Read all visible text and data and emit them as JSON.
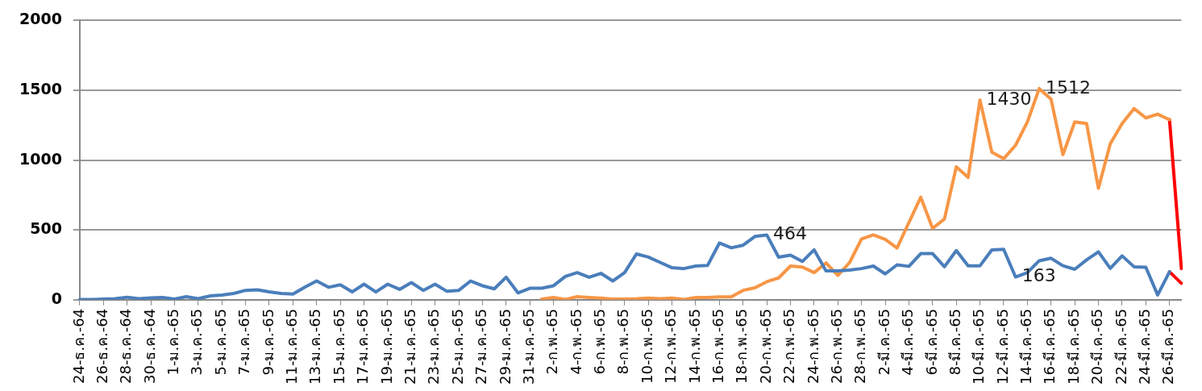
{
  "chart_data": {
    "type": "line",
    "categories": [
      "24-ธ.ค.-64",
      null,
      "26-ธ.ค.-64",
      null,
      "28-ธ.ค.-64",
      null,
      "30-ธ.ค.-64",
      null,
      "1-ม.ค.-65",
      null,
      "3-ม.ค.-65",
      null,
      "5-ม.ค.-65",
      null,
      "7-ม.ค.-65",
      null,
      "9-ม.ค.-65",
      null,
      "11-ม.ค.-65",
      null,
      "13-ม.ค.-65",
      null,
      "15-ม.ค.-65",
      null,
      "17-ม.ค.-65",
      null,
      "19-ม.ค.-65",
      null,
      "21-ม.ค.-65",
      null,
      "23-ม.ค.-65",
      null,
      "25-ม.ค.-65",
      null,
      "27-ม.ค.-65",
      null,
      "29-ม.ค.-65",
      null,
      "31-ม.ค.-65",
      null,
      "2-ก.พ.-65",
      null,
      "4-ก.พ.-65",
      null,
      "6-ก.พ.-65",
      null,
      "8-ก.พ.-65",
      null,
      "10-ก.พ.-65",
      null,
      "12-ก.พ.-65",
      null,
      "14-ก.พ.-65",
      null,
      "16-ก.พ.-65",
      null,
      "18-ก.พ.-65",
      null,
      "20-ก.พ.-65",
      null,
      "22-ก.พ.-65",
      null,
      "24-ก.พ.-65",
      null,
      "26-ก.พ.-65",
      null,
      "28-ก.พ.-65",
      null,
      "2-มี.ค.-65",
      null,
      "4-มี.ค.-65",
      null,
      "6-มี.ค.-65",
      null,
      "8-มี.ค.-65",
      null,
      "10-มี.ค.-65",
      null,
      "12-มี.ค.-65",
      null,
      "14-มี.ค.-65",
      null,
      "16-มี.ค.-65",
      null,
      "18-มี.ค.-65",
      null,
      "20-มี.ค.-65",
      null,
      "22-มี.ค.-65",
      null,
      "24-มี.ค.-65",
      null,
      "26-มี.ค.-65",
      null
    ],
    "series": [
      {
        "color": "#4a7ebb",
        "values": [
          2,
          2,
          5,
          7,
          18,
          7,
          13,
          16,
          5,
          22,
          7,
          27,
          33,
          45,
          67,
          71,
          56,
          45,
          40,
          89,
          134,
          89,
          107,
          56,
          111,
          56,
          111,
          74,
          123,
          67,
          111,
          60,
          67,
          134,
          100,
          78,
          161,
          49,
          82,
          82,
          100,
          167,
          194,
          161,
          189,
          134,
          194,
          328,
          305,
          267,
          229,
          223,
          241,
          245,
          406,
          372,
          390,
          453,
          464,
          305,
          319,
          274,
          357,
          207,
          207,
          212,
          223,
          241,
          185,
          250,
          239,
          330,
          330,
          236,
          352,
          243,
          243,
          357,
          361,
          163,
          194,
          279,
          297,
          243,
          218,
          285,
          343,
          225,
          314,
          236,
          232,
          34,
          200,
          null
        ],
        "value_labels": [
          null,
          null,
          null,
          null,
          null,
          null,
          null,
          null,
          null,
          null,
          null,
          null,
          null,
          null,
          null,
          null,
          null,
          null,
          null,
          null,
          null,
          null,
          null,
          null,
          null,
          null,
          null,
          null,
          null,
          null,
          null,
          null,
          null,
          null,
          null,
          null,
          null,
          null,
          null,
          null,
          null,
          null,
          null,
          null,
          null,
          null,
          null,
          null,
          null,
          null,
          null,
          null,
          null,
          null,
          null,
          null,
          null,
          null,
          "464",
          null,
          null,
          null,
          null,
          null,
          null,
          null,
          null,
          null,
          null,
          null,
          null,
          null,
          null,
          null,
          null,
          null,
          null,
          null,
          null,
          "163",
          null,
          null,
          null,
          null,
          null,
          null,
          null,
          null,
          null,
          null,
          null,
          null,
          null,
          null
        ]
      },
      {
        "color": "#f79646",
        "values": [
          null,
          null,
          null,
          null,
          null,
          null,
          null,
          null,
          null,
          null,
          null,
          null,
          null,
          null,
          null,
          null,
          null,
          null,
          null,
          null,
          null,
          null,
          null,
          null,
          null,
          null,
          null,
          null,
          null,
          null,
          null,
          null,
          null,
          null,
          null,
          null,
          null,
          null,
          null,
          5,
          16,
          2,
          22,
          16,
          11,
          4,
          5,
          7,
          11,
          7,
          11,
          2,
          16,
          16,
          20,
          20,
          67,
          85,
          129,
          156,
          241,
          234,
          194,
          263,
          174,
          267,
          435,
          464,
          433,
          370,
          553,
          734,
          511,
          578,
          952,
          876,
          1430,
          1057,
          1010,
          1106,
          1273,
          1512,
          1436,
          1039,
          1273,
          1262,
          798,
          1117,
          1262,
          1369,
          1302,
          1329,
          1289,
          null
        ],
        "value_labels": [
          null,
          null,
          null,
          null,
          null,
          null,
          null,
          null,
          null,
          null,
          null,
          null,
          null,
          null,
          null,
          null,
          null,
          null,
          null,
          null,
          null,
          null,
          null,
          null,
          null,
          null,
          null,
          null,
          null,
          null,
          null,
          null,
          null,
          null,
          null,
          null,
          null,
          null,
          null,
          null,
          null,
          null,
          null,
          null,
          null,
          null,
          null,
          null,
          null,
          null,
          null,
          null,
          null,
          null,
          null,
          null,
          null,
          null,
          null,
          null,
          null,
          null,
          null,
          null,
          null,
          null,
          null,
          null,
          null,
          null,
          null,
          null,
          null,
          null,
          null,
          null,
          "1430",
          null,
          null,
          null,
          null,
          "1512",
          null,
          null,
          null,
          null,
          null,
          null,
          null,
          null,
          null,
          null,
          null,
          null
        ]
      },
      {
        "color": "#ff0000",
        "values": [
          null,
          null,
          null,
          null,
          null,
          null,
          null,
          null,
          null,
          null,
          null,
          null,
          null,
          null,
          null,
          null,
          null,
          null,
          null,
          null,
          null,
          null,
          null,
          null,
          null,
          null,
          null,
          null,
          null,
          null,
          null,
          null,
          null,
          null,
          null,
          null,
          null,
          null,
          null,
          null,
          null,
          null,
          null,
          null,
          null,
          null,
          null,
          null,
          null,
          null,
          null,
          null,
          null,
          null,
          null,
          null,
          null,
          null,
          null,
          null,
          null,
          null,
          null,
          null,
          null,
          null,
          null,
          null,
          null,
          null,
          null,
          null,
          null,
          null,
          null,
          null,
          null,
          null,
          null,
          null,
          null,
          null,
          null,
          null,
          null,
          null,
          null,
          null,
          null,
          null,
          null,
          null,
          1289,
          223
        ]
      },
      {
        "color": "#ff0000",
        "values": [
          null,
          null,
          null,
          null,
          null,
          null,
          null,
          null,
          null,
          null,
          null,
          null,
          null,
          null,
          null,
          null,
          null,
          null,
          null,
          null,
          null,
          null,
          null,
          null,
          null,
          null,
          null,
          null,
          null,
          null,
          null,
          null,
          null,
          null,
          null,
          null,
          null,
          null,
          null,
          null,
          null,
          null,
          null,
          null,
          null,
          null,
          null,
          null,
          null,
          null,
          null,
          null,
          null,
          null,
          null,
          null,
          null,
          null,
          null,
          null,
          null,
          null,
          null,
          null,
          null,
          null,
          null,
          null,
          null,
          null,
          null,
          null,
          null,
          null,
          null,
          null,
          null,
          null,
          null,
          null,
          null,
          null,
          null,
          null,
          null,
          null,
          null,
          null,
          null,
          null,
          null,
          null,
          200,
          118
        ]
      }
    ],
    "ylim": [
      0,
      2000
    ],
    "yticks": [
      0,
      500,
      1000,
      1500,
      2000
    ],
    "grid": "y",
    "legend": false,
    "marker": "none",
    "line_style": "solid"
  }
}
